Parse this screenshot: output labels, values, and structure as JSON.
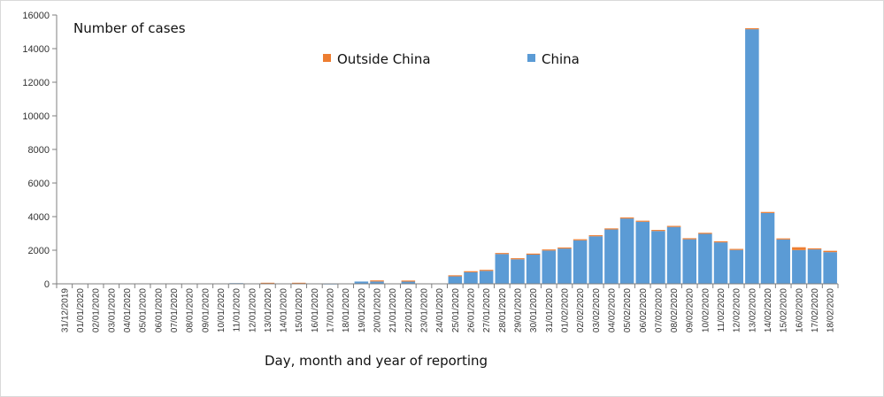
{
  "chart_data": {
    "type": "bar",
    "stacked": true,
    "ylabel": "Number of cases",
    "xlabel": "Day, month and year of reporting",
    "ylim": [
      0,
      16000
    ],
    "yticks": [
      0,
      2000,
      4000,
      6000,
      8000,
      10000,
      12000,
      14000,
      16000
    ],
    "grid": false,
    "legend_position": "top-center",
    "categories": [
      "31/12/2019",
      "01/01/2020",
      "02/01/2020",
      "03/01/2020",
      "04/01/2020",
      "05/01/2020",
      "06/01/2020",
      "07/01/2020",
      "08/01/2020",
      "09/01/2020",
      "10/01/2020",
      "11/01/2020",
      "12/01/2020",
      "13/01/2020",
      "14/01/2020",
      "15/01/2020",
      "16/01/2020",
      "17/01/2020",
      "18/01/2020",
      "19/01/2020",
      "20/01/2020",
      "21/01/2020",
      "22/01/2020",
      "23/01/2020",
      "24/01/2020",
      "25/01/2020",
      "26/01/2020",
      "27/01/2020",
      "28/01/2020",
      "29/01/2020",
      "30/01/2020",
      "31/01/2020",
      "01/02/2020",
      "02/02/2020",
      "03/02/2020",
      "04/02/2020",
      "05/02/2020",
      "06/02/2020",
      "07/02/2020",
      "08/02/2020",
      "09/02/2020",
      "10/02/2020",
      "11/02/2020",
      "12/02/2020",
      "13/02/2020",
      "14/02/2020",
      "15/02/2020",
      "16/02/2020",
      "17/02/2020",
      "18/02/2020"
    ],
    "series": [
      {
        "name": "China",
        "color": "#5b9bd5",
        "values": [
          27,
          0,
          0,
          17,
          0,
          15,
          0,
          0,
          0,
          0,
          0,
          41,
          0,
          0,
          0,
          0,
          0,
          4,
          17,
          136,
          139,
          0,
          131,
          0,
          0,
          444,
          688,
          769,
          1771,
          1459,
          1737,
          1981,
          2099,
          2590,
          2829,
          3235,
          3887,
          3694,
          3143,
          3385,
          2652,
          2973,
          2467,
          2015,
          15152,
          4214,
          2641,
          2009,
          2048,
          1886
        ]
      },
      {
        "name": "Outside China",
        "color": "#ed7d31",
        "values": [
          0,
          0,
          0,
          0,
          0,
          0,
          0,
          0,
          0,
          0,
          0,
          0,
          0,
          1,
          0,
          1,
          0,
          0,
          0,
          0,
          2,
          0,
          15,
          0,
          0,
          33,
          4,
          13,
          25,
          18,
          30,
          10,
          32,
          15,
          19,
          52,
          30,
          45,
          26,
          48,
          14,
          21,
          32,
          16,
          48,
          35,
          26,
          168,
          53,
          80
        ]
      }
    ]
  }
}
